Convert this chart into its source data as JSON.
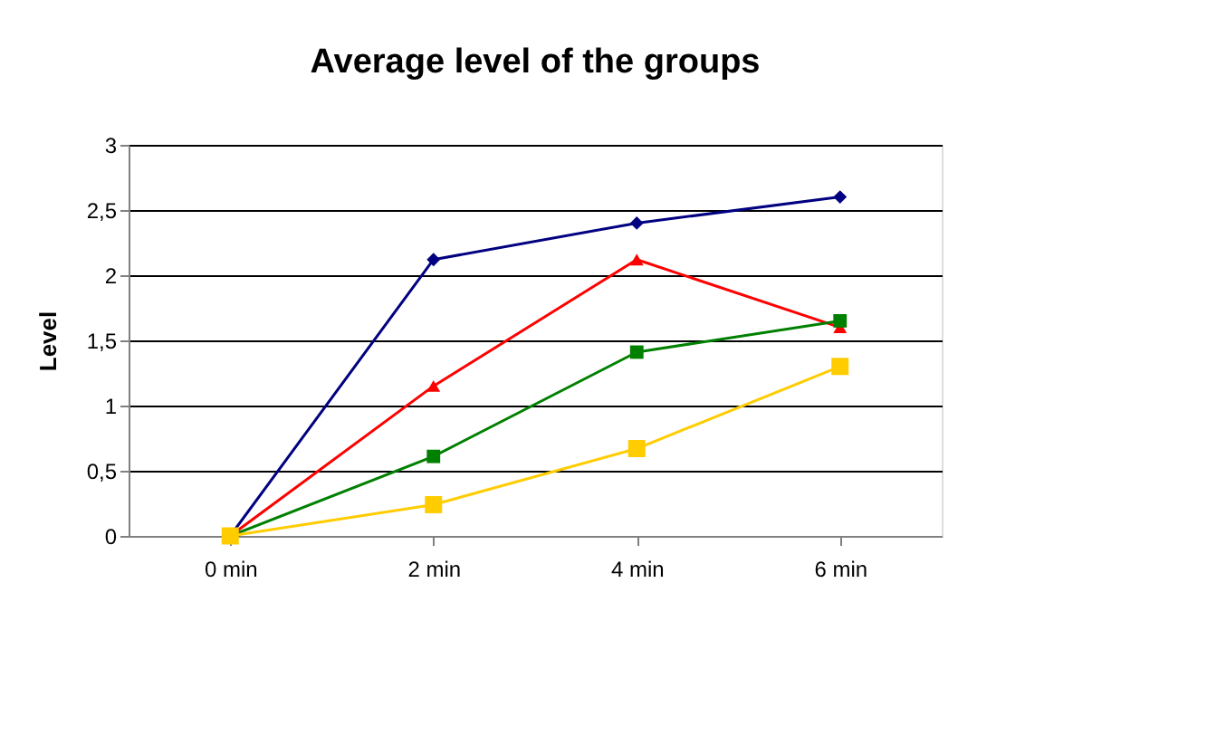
{
  "chart_data": {
    "type": "line",
    "title": "Average level of the groups",
    "ylabel": "Level",
    "categories": [
      "0 min",
      "2 min",
      "4 min",
      "6 min"
    ],
    "series": [
      {
        "color": "#000080",
        "marker": "diamond",
        "values": [
          0,
          2.12,
          2.4,
          2.6
        ]
      },
      {
        "color": "#ff0000",
        "marker": "triangle",
        "values": [
          0,
          1.15,
          2.12,
          1.6
        ]
      },
      {
        "color": "#008000",
        "marker": "square",
        "values": [
          0,
          0.61,
          1.41,
          1.65
        ]
      },
      {
        "color": "#ffcc00",
        "marker": "square",
        "values": [
          0,
          0.24,
          0.67,
          1.3
        ]
      }
    ],
    "ylim": [
      0,
      3
    ],
    "yticks": [
      0,
      {
        "value": 0.5,
        "label": "0,5"
      },
      1,
      {
        "value": 1.5,
        "label": "1,5"
      },
      2,
      {
        "value": 2.5,
        "label": "2,5"
      },
      3
    ],
    "grid": "y",
    "line_style": "solid"
  }
}
